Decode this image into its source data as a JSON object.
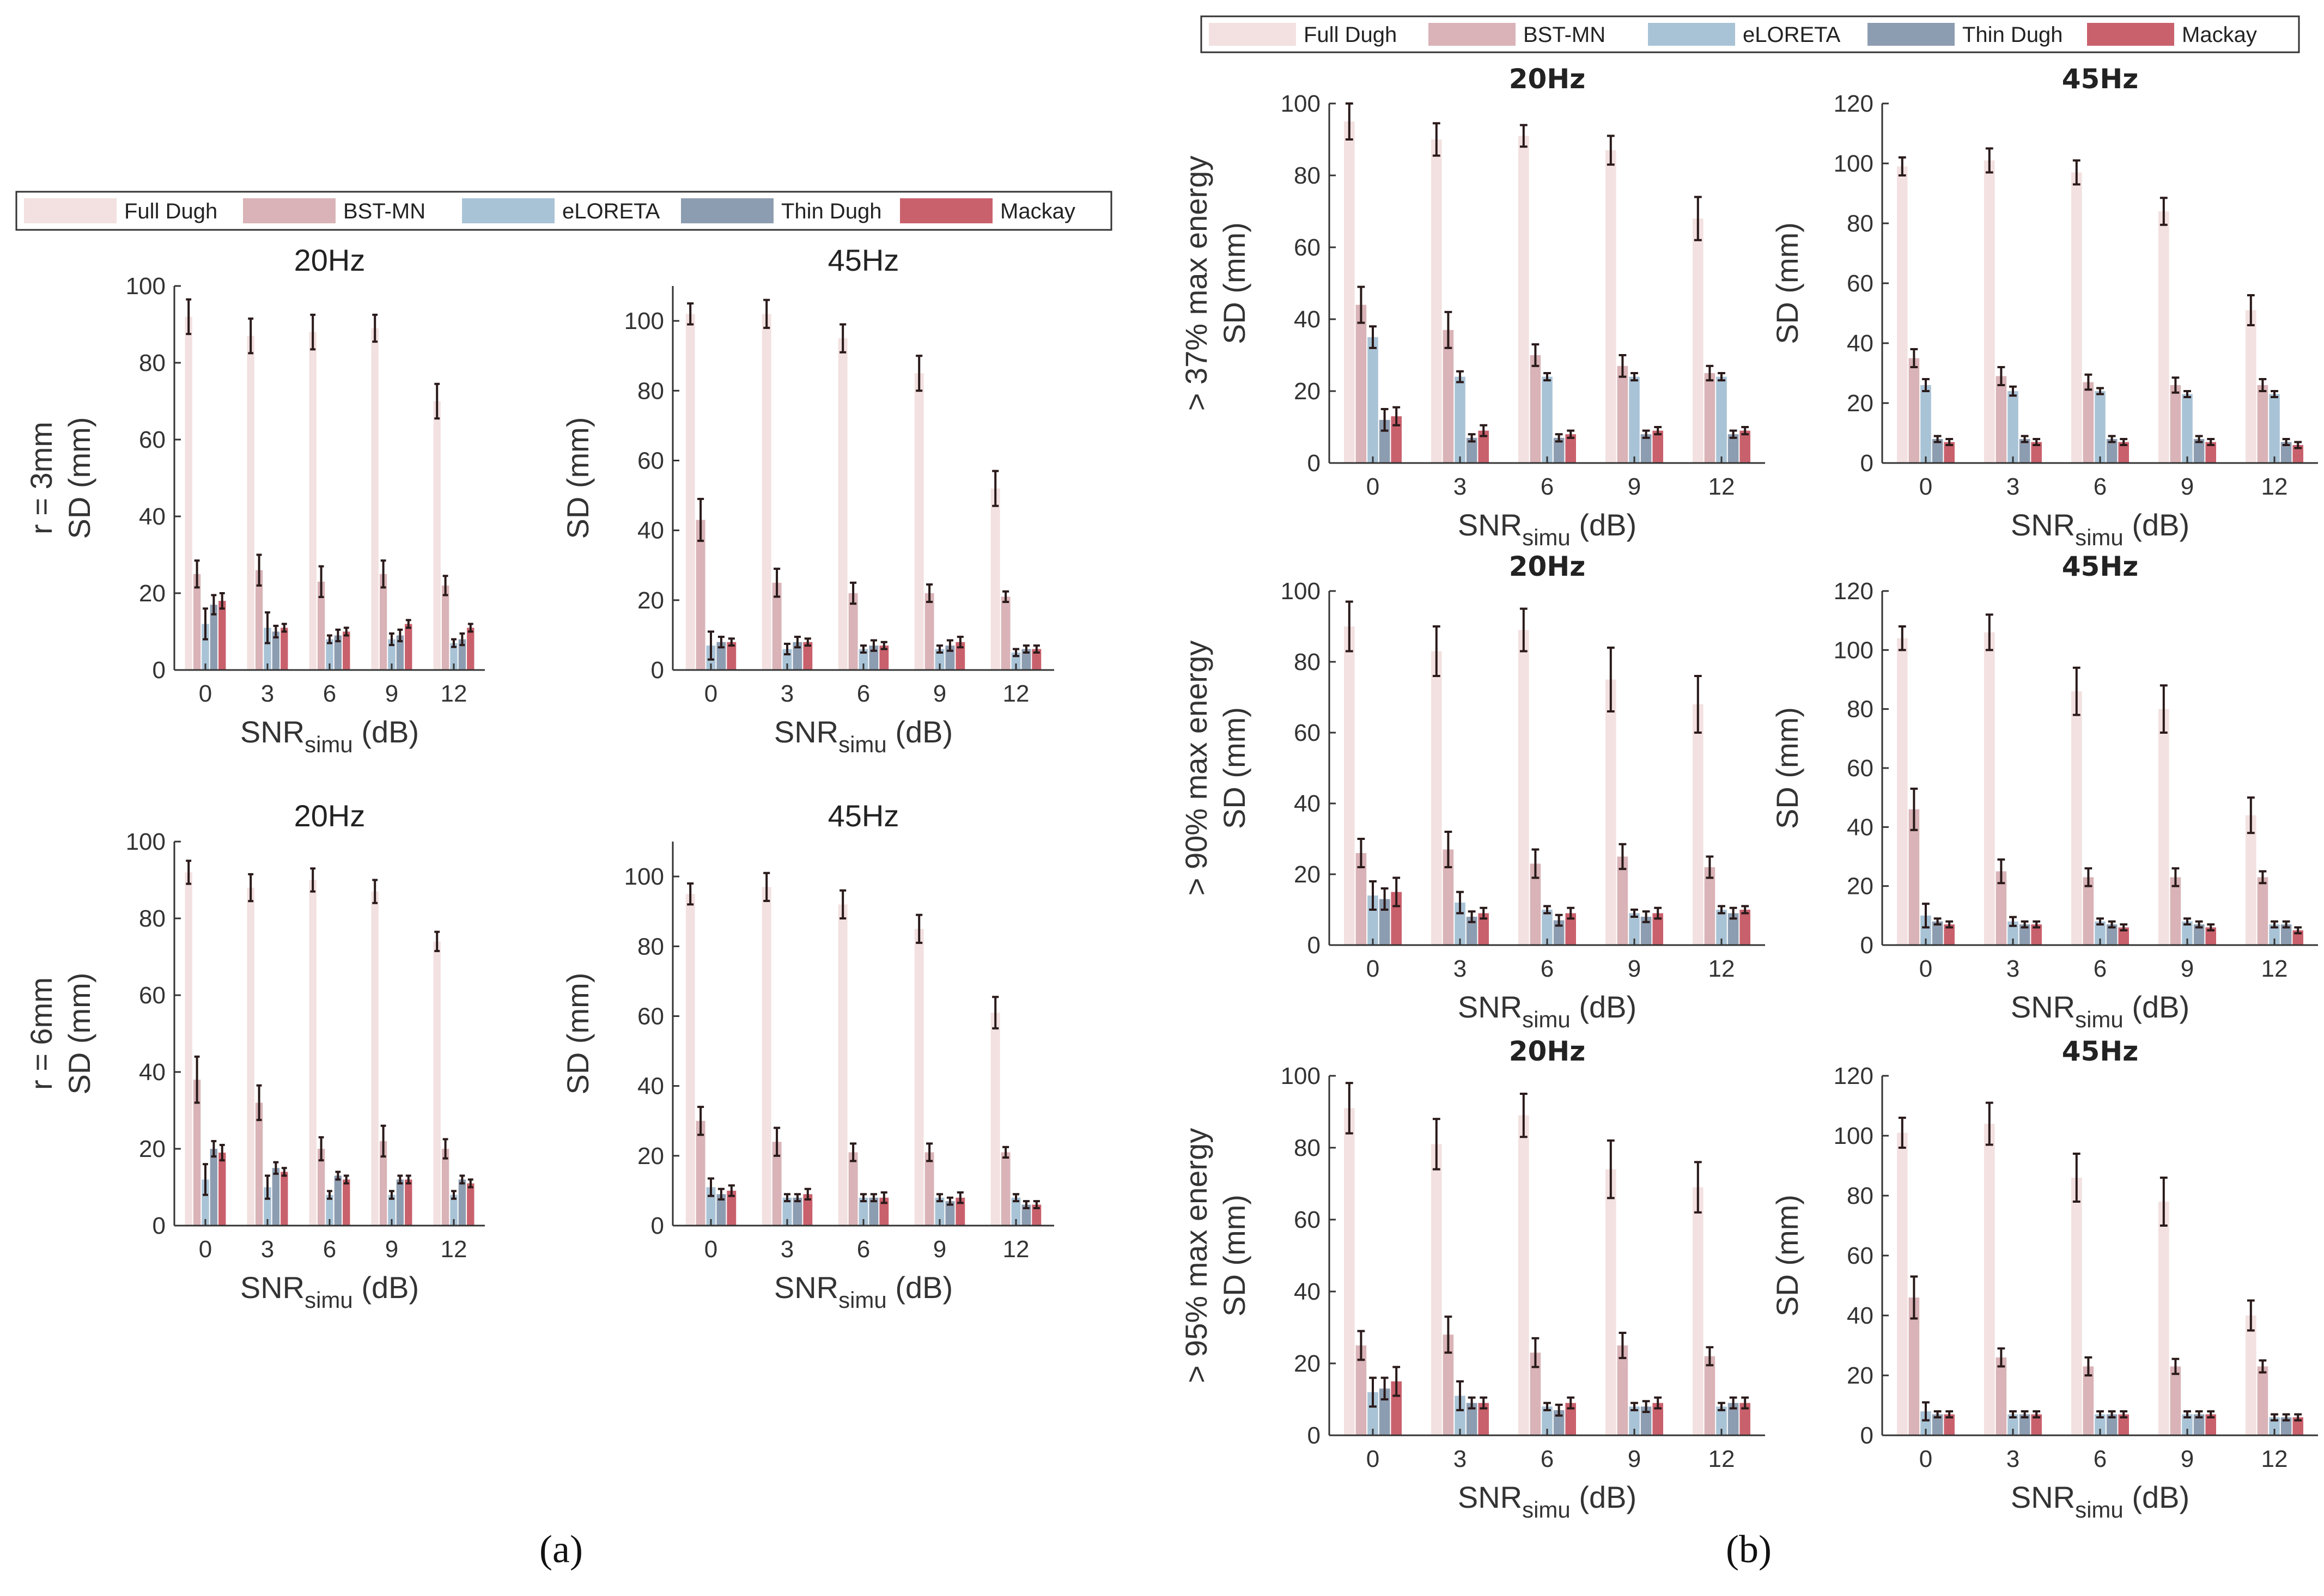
{
  "figure": {
    "panel_labels": [
      "(a)",
      "(b)"
    ],
    "colors": {
      "Full Dugh": "#f2e1e0",
      "BST-MN": "#d9b3b7",
      "eLORETA": "#a9c3d6",
      "Thin Dugh": "#8d9db1",
      "Mackay": "#c9616d"
    }
  },
  "legend_a": [
    "Full Dugh",
    "BST-MN",
    "eLORETA",
    "Thin Dugh",
    "Mackay"
  ],
  "legend_b": [
    "Full Dugh",
    "BST-MN",
    "eLORETA",
    "Thin Dugh",
    "Mackay"
  ],
  "chart_data": [
    {
      "type": "bar",
      "panel": "a",
      "title": "20Hz",
      "row_label": "r = 3mm",
      "ylabel": "SD (mm)",
      "xlabel": "SNR",
      "xlabel_sub": "simu",
      "xlabel_unit": " (dB)",
      "categories": [
        "0",
        "3",
        "6",
        "9",
        "12"
      ],
      "ylim": [
        0,
        100
      ],
      "yticks": [
        0,
        20,
        40,
        60,
        80,
        100
      ],
      "series": [
        {
          "name": "Full Dugh",
          "values": [
            92,
            87,
            88,
            89,
            70
          ],
          "errors": [
            4.5,
            4.5,
            4.5,
            3.5,
            4.5
          ]
        },
        {
          "name": "BST-MN",
          "values": [
            25,
            26,
            23,
            25,
            22
          ],
          "errors": [
            3.5,
            4,
            4,
            3.5,
            2.5
          ]
        },
        {
          "name": "eLORETA",
          "values": [
            12,
            11,
            8,
            8,
            7
          ],
          "errors": [
            4,
            4,
            1,
            1.5,
            1
          ]
        },
        {
          "name": "Thin Dugh",
          "values": [
            17,
            10,
            9,
            9,
            8
          ],
          "errors": [
            2.5,
            1.5,
            1.5,
            1.5,
            1.5
          ]
        },
        {
          "name": "Mackay",
          "values": [
            18,
            11,
            10,
            12,
            11
          ],
          "errors": [
            2,
            1,
            1,
            1,
            1
          ]
        }
      ]
    },
    {
      "type": "bar",
      "panel": "a",
      "title": "45Hz",
      "row_label": "",
      "ylabel": "SD (mm)",
      "xlabel": "SNR",
      "xlabel_sub": "simu",
      "xlabel_unit": " (dB)",
      "categories": [
        "0",
        "3",
        "6",
        "9",
        "12"
      ],
      "ylim": [
        0,
        110
      ],
      "yticks": [
        0,
        20,
        40,
        60,
        80,
        100
      ],
      "series": [
        {
          "name": "Full Dugh",
          "values": [
            102,
            102,
            95,
            85,
            52
          ],
          "errors": [
            3,
            4,
            4,
            5,
            5
          ]
        },
        {
          "name": "BST-MN",
          "values": [
            43,
            25,
            22,
            22,
            21
          ],
          "errors": [
            6,
            4,
            3,
            2.5,
            1.5
          ]
        },
        {
          "name": "eLORETA",
          "values": [
            7,
            6,
            6,
            6,
            5
          ],
          "errors": [
            4,
            1.5,
            1,
            1,
            1
          ]
        },
        {
          "name": "Thin Dugh",
          "values": [
            8,
            8,
            7,
            7,
            6
          ],
          "errors": [
            1.5,
            1.5,
            1.5,
            1.5,
            1
          ]
        },
        {
          "name": "Mackay",
          "values": [
            8,
            8,
            7,
            8,
            6
          ],
          "errors": [
            1,
            1,
            1,
            1.5,
            1
          ]
        }
      ]
    },
    {
      "type": "bar",
      "panel": "a",
      "title": "20Hz",
      "row_label": "r = 6mm",
      "ylabel": "SD (mm)",
      "xlabel": "SNR",
      "xlabel_sub": "simu",
      "xlabel_unit": " (dB)",
      "categories": [
        "0",
        "3",
        "6",
        "9",
        "12"
      ],
      "ylim": [
        0,
        100
      ],
      "yticks": [
        0,
        20,
        40,
        60,
        80,
        100
      ],
      "series": [
        {
          "name": "Full Dugh",
          "values": [
            92,
            88,
            90,
            87,
            74
          ],
          "errors": [
            3,
            3.5,
            3,
            3,
            2.5
          ]
        },
        {
          "name": "BST-MN",
          "values": [
            38,
            32,
            20,
            22,
            20
          ],
          "errors": [
            6,
            4.5,
            3,
            4,
            2.5
          ]
        },
        {
          "name": "eLORETA",
          "values": [
            12,
            10,
            8,
            8,
            8
          ],
          "errors": [
            4,
            3,
            1,
            1,
            1
          ]
        },
        {
          "name": "Thin Dugh",
          "values": [
            20,
            15,
            13,
            12,
            12
          ],
          "errors": [
            2,
            1.5,
            1,
            1,
            1
          ]
        },
        {
          "name": "Mackay",
          "values": [
            19,
            14,
            12,
            12,
            11
          ],
          "errors": [
            2,
            1,
            1,
            1,
            1
          ]
        }
      ]
    },
    {
      "type": "bar",
      "panel": "a",
      "title": "45Hz",
      "row_label": "",
      "ylabel": "SD (mm)",
      "xlabel": "SNR",
      "xlabel_sub": "simu",
      "xlabel_unit": " (dB)",
      "categories": [
        "0",
        "3",
        "6",
        "9",
        "12"
      ],
      "ylim": [
        0,
        110
      ],
      "yticks": [
        0,
        20,
        40,
        60,
        80,
        100
      ],
      "series": [
        {
          "name": "Full Dugh",
          "values": [
            95,
            97,
            92,
            85,
            61
          ],
          "errors": [
            3,
            4,
            4,
            4,
            4.5
          ]
        },
        {
          "name": "BST-MN",
          "values": [
            30,
            24,
            21,
            21,
            21
          ],
          "errors": [
            4,
            4,
            2.5,
            2.5,
            1.5
          ]
        },
        {
          "name": "eLORETA",
          "values": [
            11,
            8,
            8,
            8,
            8
          ],
          "errors": [
            2.5,
            1,
            1,
            1,
            1
          ]
        },
        {
          "name": "Thin Dugh",
          "values": [
            9,
            8,
            8,
            7,
            6
          ],
          "errors": [
            1.5,
            1,
            1,
            1,
            1
          ]
        },
        {
          "name": "Mackay",
          "values": [
            10,
            9,
            8,
            8,
            6
          ],
          "errors": [
            1.5,
            1.5,
            1.5,
            1.5,
            1
          ]
        }
      ]
    },
    {
      "type": "bar",
      "panel": "b",
      "title": "20Hz",
      "row_label": "> 37% max energy",
      "ylabel": "SD (mm)",
      "xlabel": "SNR",
      "xlabel_sub": "simu",
      "xlabel_unit": " (dB)",
      "categories": [
        "0",
        "3",
        "6",
        "9",
        "12"
      ],
      "ylim": [
        0,
        100
      ],
      "yticks": [
        0,
        20,
        40,
        60,
        80,
        100
      ],
      "series": [
        {
          "name": "Full Dugh",
          "values": [
            95,
            90,
            91,
            87,
            68
          ],
          "errors": [
            5,
            4.5,
            3,
            4,
            6
          ]
        },
        {
          "name": "BST-MN",
          "values": [
            44,
            37,
            30,
            27,
            25
          ],
          "errors": [
            5,
            5,
            3,
            3,
            2
          ]
        },
        {
          "name": "eLORETA",
          "values": [
            35,
            24,
            24,
            24,
            24
          ],
          "errors": [
            3,
            1.5,
            1,
            1,
            1
          ]
        },
        {
          "name": "Thin Dugh",
          "values": [
            12,
            7,
            7,
            8,
            8
          ],
          "errors": [
            3,
            1,
            1,
            1,
            1
          ]
        },
        {
          "name": "Mackay",
          "values": [
            13,
            9,
            8,
            9,
            9
          ],
          "errors": [
            2.5,
            1.5,
            1,
            1,
            1
          ]
        }
      ]
    },
    {
      "type": "bar",
      "panel": "b",
      "title": "45Hz",
      "row_label": "",
      "ylabel": "SD (mm)",
      "xlabel": "SNR",
      "xlabel_sub": "simu",
      "xlabel_unit": " (dB)",
      "categories": [
        "0",
        "3",
        "6",
        "9",
        "12"
      ],
      "ylim": [
        0,
        120
      ],
      "yticks": [
        0,
        20,
        40,
        60,
        80,
        100,
        120
      ],
      "series": [
        {
          "name": "Full Dugh",
          "values": [
            99,
            101,
            97,
            84,
            51
          ],
          "errors": [
            3,
            4,
            4,
            4.5,
            5
          ]
        },
        {
          "name": "BST-MN",
          "values": [
            35,
            29,
            27,
            26,
            26
          ],
          "errors": [
            3,
            3,
            2.5,
            2.5,
            2
          ]
        },
        {
          "name": "eLORETA",
          "values": [
            26,
            24,
            24,
            23,
            23
          ],
          "errors": [
            2,
            1.5,
            1,
            1,
            1
          ]
        },
        {
          "name": "Thin Dugh",
          "values": [
            8,
            8,
            8,
            8,
            7
          ],
          "errors": [
            1,
            1,
            1,
            1,
            1
          ]
        },
        {
          "name": "Mackay",
          "values": [
            7,
            7,
            7,
            7,
            6
          ],
          "errors": [
            1,
            1,
            1,
            1,
            1
          ]
        }
      ]
    },
    {
      "type": "bar",
      "panel": "b",
      "title": "20Hz",
      "row_label": "> 90% max energy",
      "ylabel": "SD (mm)",
      "xlabel": "SNR",
      "xlabel_sub": "simu",
      "xlabel_unit": " (dB)",
      "categories": [
        "0",
        "3",
        "6",
        "9",
        "12"
      ],
      "ylim": [
        0,
        100
      ],
      "yticks": [
        0,
        20,
        40,
        60,
        80,
        100
      ],
      "series": [
        {
          "name": "Full Dugh",
          "values": [
            90,
            83,
            89,
            75,
            68
          ],
          "errors": [
            7,
            7,
            6,
            9,
            8
          ]
        },
        {
          "name": "BST-MN",
          "values": [
            26,
            27,
            23,
            25,
            22
          ],
          "errors": [
            4,
            5,
            4,
            3.5,
            3
          ]
        },
        {
          "name": "eLORETA",
          "values": [
            14,
            12,
            10,
            9,
            10
          ],
          "errors": [
            4,
            3,
            1,
            1,
            1
          ]
        },
        {
          "name": "Thin Dugh",
          "values": [
            13,
            8,
            7,
            8,
            9
          ],
          "errors": [
            3,
            1.5,
            1.5,
            1.5,
            1.5
          ]
        },
        {
          "name": "Mackay",
          "values": [
            15,
            9,
            9,
            9,
            10
          ],
          "errors": [
            4,
            1.5,
            1.5,
            1.5,
            1
          ]
        }
      ]
    },
    {
      "type": "bar",
      "panel": "b",
      "title": "45Hz",
      "row_label": "",
      "ylabel": "SD (mm)",
      "xlabel": "SNR",
      "xlabel_sub": "simu",
      "xlabel_unit": " (dB)",
      "categories": [
        "0",
        "3",
        "6",
        "9",
        "12"
      ],
      "ylim": [
        0,
        120
      ],
      "yticks": [
        0,
        20,
        40,
        60,
        80,
        100,
        120
      ],
      "series": [
        {
          "name": "Full Dugh",
          "values": [
            104,
            106,
            86,
            80,
            44
          ],
          "errors": [
            4,
            6,
            8,
            8,
            6
          ]
        },
        {
          "name": "BST-MN",
          "values": [
            46,
            25,
            23,
            23,
            23
          ],
          "errors": [
            7,
            4,
            3,
            3,
            2
          ]
        },
        {
          "name": "eLORETA",
          "values": [
            10,
            8,
            8,
            8,
            7
          ],
          "errors": [
            4,
            1.5,
            1,
            1,
            1
          ]
        },
        {
          "name": "Thin Dugh",
          "values": [
            8,
            7,
            7,
            7,
            7
          ],
          "errors": [
            1,
            1,
            1,
            1,
            1
          ]
        },
        {
          "name": "Mackay",
          "values": [
            7,
            7,
            6,
            6,
            5
          ],
          "errors": [
            1,
            1,
            1,
            1,
            1
          ]
        }
      ]
    },
    {
      "type": "bar",
      "panel": "b",
      "title": "20Hz",
      "row_label": "> 95% max energy",
      "ylabel": "SD (mm)",
      "xlabel": "SNR",
      "xlabel_sub": "simu",
      "xlabel_unit": " (dB)",
      "categories": [
        "0",
        "3",
        "6",
        "9",
        "12"
      ],
      "ylim": [
        0,
        100
      ],
      "yticks": [
        0,
        20,
        40,
        60,
        80,
        100
      ],
      "series": [
        {
          "name": "Full Dugh",
          "values": [
            91,
            81,
            89,
            74,
            69
          ],
          "errors": [
            7,
            7,
            6,
            8,
            7
          ]
        },
        {
          "name": "BST-MN",
          "values": [
            25,
            28,
            23,
            25,
            22
          ],
          "errors": [
            4,
            5,
            4,
            3.5,
            2.5
          ]
        },
        {
          "name": "eLORETA",
          "values": [
            12,
            11,
            8,
            8,
            8
          ],
          "errors": [
            4,
            4,
            1,
            1,
            1
          ]
        },
        {
          "name": "Thin Dugh",
          "values": [
            13,
            9,
            7,
            8,
            9
          ],
          "errors": [
            3,
            1.5,
            1.5,
            1.5,
            1.5
          ]
        },
        {
          "name": "Mackay",
          "values": [
            15,
            9,
            9,
            9,
            9
          ],
          "errors": [
            4,
            1.5,
            1.5,
            1.5,
            1.5
          ]
        }
      ]
    },
    {
      "type": "bar",
      "panel": "b",
      "title": "45Hz",
      "row_label": "",
      "ylabel": "SD (mm)",
      "xlabel": "SNR",
      "xlabel_sub": "simu",
      "xlabel_unit": " (dB)",
      "categories": [
        "0",
        "3",
        "6",
        "9",
        "12"
      ],
      "ylim": [
        0,
        120
      ],
      "yticks": [
        0,
        20,
        40,
        60,
        80,
        100,
        120
      ],
      "series": [
        {
          "name": "Full Dugh",
          "values": [
            101,
            104,
            86,
            78,
            40
          ],
          "errors": [
            5,
            7,
            8,
            8,
            5
          ]
        },
        {
          "name": "BST-MN",
          "values": [
            46,
            26,
            23,
            23,
            23
          ],
          "errors": [
            7,
            3,
            3,
            2.5,
            2
          ]
        },
        {
          "name": "eLORETA",
          "values": [
            8,
            7,
            7,
            7,
            6
          ],
          "errors": [
            3,
            1,
            1,
            1,
            1
          ]
        },
        {
          "name": "Thin Dugh",
          "values": [
            7,
            7,
            7,
            7,
            6
          ],
          "errors": [
            1,
            1,
            1,
            1,
            1
          ]
        },
        {
          "name": "Mackay",
          "values": [
            7,
            7,
            7,
            7,
            6
          ],
          "errors": [
            1,
            1,
            1,
            1,
            1
          ]
        }
      ]
    }
  ]
}
